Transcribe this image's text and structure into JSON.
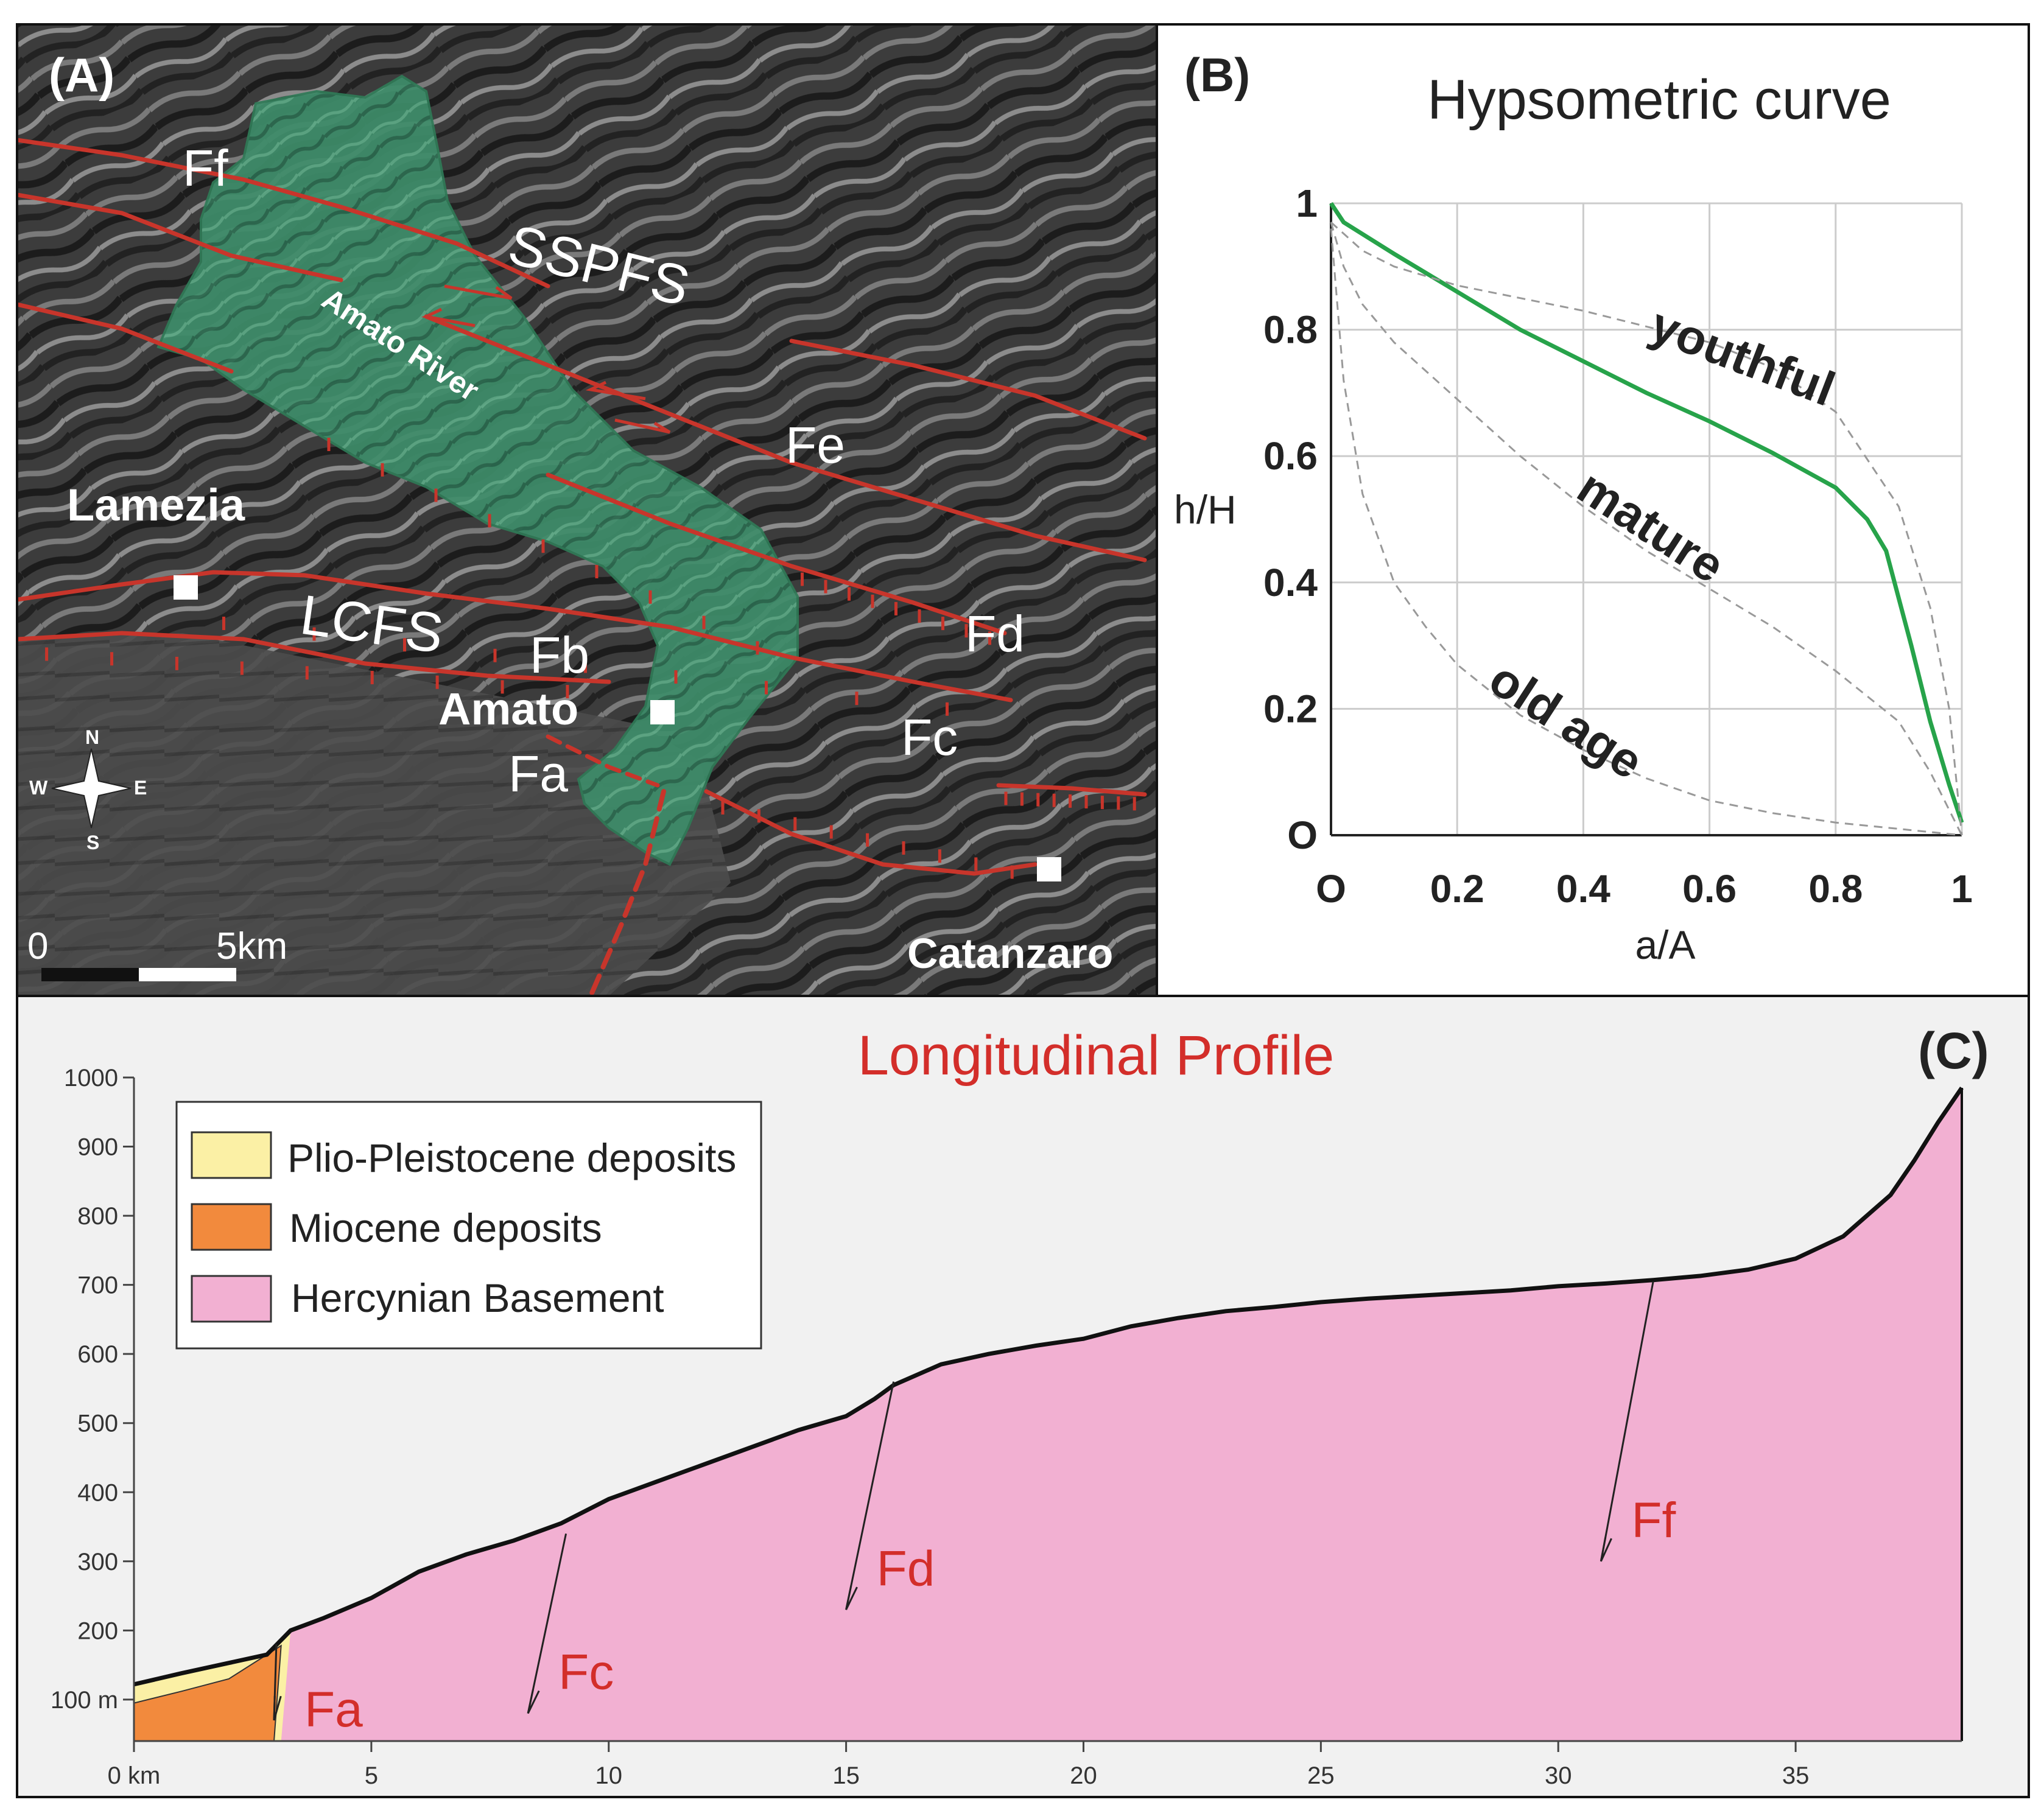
{
  "panel_a": {
    "label": "(A)",
    "faults": [
      "Ff",
      "Fe",
      "Fd",
      "Fc",
      "Fb",
      "Fa"
    ],
    "systems": [
      "SSPFS",
      "LCFS"
    ],
    "river": "Amato River",
    "towns": [
      "Lamezia",
      "Amato",
      "Catanzaro"
    ],
    "compass": {
      "n": "N",
      "s": "S",
      "e": "E",
      "w": "W"
    },
    "scale": {
      "start": "0",
      "end": "5km"
    },
    "colors": {
      "basin": "#3f8f6a",
      "fault": "#c8352b",
      "relief": "#3a3a3a"
    }
  },
  "panel_b": {
    "label": "(B)",
    "title": "Hypsometric curve",
    "xlabel": "a/A",
    "ylabel": "h/H",
    "curve_labels": [
      "youthful",
      "mature",
      "old age"
    ],
    "colors": {
      "basin_curve": "#27a34a",
      "reference_curve": "#999999",
      "grid": "#cccccc"
    }
  },
  "panel_c": {
    "label": "(C)",
    "title": "Longitudinal Profile",
    "legend": [
      "Plio-Pleistocene deposits",
      "Miocene deposits",
      "Hercynian Basement"
    ],
    "legend_colors": [
      "#fbf0a5",
      "#f28a3d",
      "#f2b0d2"
    ],
    "fault_labels": [
      "Fa",
      "Fc",
      "Fd",
      "Ff"
    ],
    "title_color": "#d32e2a"
  },
  "chart_data": [
    {
      "type": "line",
      "title": "Hypsometric curve",
      "xlabel": "a/A",
      "ylabel": "h/H",
      "xlim": [
        0,
        1
      ],
      "ylim": [
        0,
        1
      ],
      "x_ticks": [
        "O",
        "0.2",
        "0.4",
        "0.6",
        "0.8",
        "1"
      ],
      "y_ticks": [
        "O",
        "0.2",
        "0.4",
        "0.6",
        "0.8",
        "1"
      ],
      "grid": true,
      "series": [
        {
          "name": "",
          "x": [
            0.0,
            0.02,
            0.1,
            0.2,
            0.3,
            0.4,
            0.5,
            0.6,
            0.7,
            0.8,
            0.85,
            0.88,
            0.92,
            0.95,
            0.98,
            1.0
          ],
          "y": [
            1.0,
            0.97,
            0.92,
            0.86,
            0.8,
            0.75,
            0.7,
            0.655,
            0.605,
            0.55,
            0.5,
            0.45,
            0.3,
            0.18,
            0.08,
            0.02
          ]
        },
        {
          "name": "youthful",
          "x": [
            0.0,
            0.05,
            0.1,
            0.2,
            0.3,
            0.4,
            0.5,
            0.6,
            0.7,
            0.8,
            0.9,
            0.95,
            0.98,
            1.0
          ],
          "y": [
            0.97,
            0.925,
            0.9,
            0.87,
            0.85,
            0.83,
            0.805,
            0.78,
            0.74,
            0.67,
            0.52,
            0.36,
            0.2,
            0.0
          ]
        },
        {
          "name": "mature",
          "x": [
            0.0,
            0.02,
            0.05,
            0.1,
            0.2,
            0.3,
            0.4,
            0.5,
            0.6,
            0.7,
            0.8,
            0.9,
            0.95,
            1.0
          ],
          "y": [
            0.97,
            0.9,
            0.84,
            0.78,
            0.69,
            0.6,
            0.52,
            0.45,
            0.39,
            0.33,
            0.26,
            0.18,
            0.1,
            0.0
          ]
        },
        {
          "name": "old age",
          "x": [
            0.0,
            0.02,
            0.05,
            0.1,
            0.15,
            0.2,
            0.3,
            0.4,
            0.5,
            0.6,
            0.7,
            0.8,
            0.9,
            1.0
          ],
          "y": [
            0.96,
            0.72,
            0.54,
            0.4,
            0.33,
            0.27,
            0.19,
            0.135,
            0.09,
            0.055,
            0.035,
            0.02,
            0.01,
            0.0
          ]
        }
      ]
    },
    {
      "type": "area",
      "title": "Longitudinal Profile",
      "xlabel": "",
      "ylabel": "",
      "x_unit": "km",
      "y_unit": "m",
      "xlim": [
        0,
        38.5
      ],
      "ylim": [
        40,
        1000
      ],
      "x_ticks": [
        "0 km",
        "5",
        "10",
        "15",
        "20",
        "25",
        "30",
        "35"
      ],
      "y_ticks": [
        "100 m",
        "200",
        "300",
        "400",
        "500",
        "600",
        "700",
        "800",
        "900",
        "1000"
      ],
      "profile": {
        "x": [
          0,
          1,
          2,
          2.8,
          3.3,
          4,
          5,
          6,
          7,
          8,
          9,
          10,
          11,
          12,
          13,
          14,
          15,
          15.6,
          16,
          17,
          18,
          19,
          20,
          21,
          22,
          23,
          24,
          25,
          26,
          27,
          28,
          29,
          30,
          31,
          32,
          33,
          34,
          35,
          36,
          37,
          37.5,
          38,
          38.5
        ],
        "y": [
          122,
          138,
          153,
          165,
          200,
          218,
          247,
          285,
          310,
          330,
          355,
          390,
          415,
          440,
          465,
          490,
          510,
          535,
          555,
          585,
          600,
          612,
          622,
          640,
          652,
          662,
          668,
          675,
          680,
          684,
          688,
          692,
          698,
          702,
          707,
          713,
          722,
          738,
          770,
          830,
          880,
          935,
          985
        ]
      },
      "miocene_top": {
        "x": [
          0,
          1,
          2,
          3.1
        ],
        "y": [
          95,
          112,
          130,
          178
        ]
      },
      "faults": [
        {
          "name": "Fa",
          "x_top": 3.0,
          "x_bottom": 2.95,
          "y_top": 180,
          "y_bottom": 70
        },
        {
          "name": "Fc",
          "x_top": 9.1,
          "x_bottom": 8.3,
          "y_top": 340,
          "y_bottom": 80
        },
        {
          "name": "Fd",
          "x_top": 16.0,
          "x_bottom": 15.0,
          "y_top": 560,
          "y_bottom": 230
        },
        {
          "name": "Ff",
          "x_top": 32.0,
          "x_bottom": 30.9,
          "y_top": 705,
          "y_bottom": 300
        }
      ],
      "series": [
        {
          "name": "Plio-Pleistocene deposits"
        },
        {
          "name": "Miocene deposits"
        },
        {
          "name": "Hercynian Basement"
        }
      ]
    }
  ]
}
